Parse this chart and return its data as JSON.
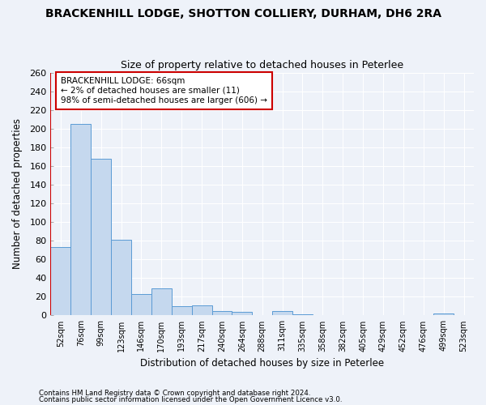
{
  "title": "BRACKENHILL LODGE, SHOTTON COLLIERY, DURHAM, DH6 2RA",
  "subtitle": "Size of property relative to detached houses in Peterlee",
  "xlabel": "Distribution of detached houses by size in Peterlee",
  "ylabel": "Number of detached properties",
  "categories": [
    "52sqm",
    "76sqm",
    "99sqm",
    "123sqm",
    "146sqm",
    "170sqm",
    "193sqm",
    "217sqm",
    "240sqm",
    "264sqm",
    "288sqm",
    "311sqm",
    "335sqm",
    "358sqm",
    "382sqm",
    "405sqm",
    "429sqm",
    "452sqm",
    "476sqm",
    "499sqm",
    "523sqm"
  ],
  "values": [
    73,
    205,
    168,
    81,
    23,
    29,
    10,
    11,
    5,
    4,
    0,
    5,
    1,
    0,
    0,
    0,
    0,
    0,
    0,
    2,
    0
  ],
  "bar_color": "#c5d8ee",
  "bar_edge_color": "#5b9bd5",
  "property_line_x": -0.5,
  "annotation_title": "BRACKENHILL LODGE: 66sqm",
  "annotation_line1": "← 2% of detached houses are smaller (11)",
  "annotation_line2": "98% of semi-detached houses are larger (606) →",
  "annotation_box_color": "#ffffff",
  "annotation_box_edge": "#cc0000",
  "property_line_color": "#cc0000",
  "ylim": [
    0,
    260
  ],
  "yticks": [
    0,
    20,
    40,
    60,
    80,
    100,
    120,
    140,
    160,
    180,
    200,
    220,
    240,
    260
  ],
  "footer1": "Contains HM Land Registry data © Crown copyright and database right 2024.",
  "footer2": "Contains public sector information licensed under the Open Government Licence v3.0.",
  "background_color": "#eef2f9",
  "grid_color": "#ffffff"
}
